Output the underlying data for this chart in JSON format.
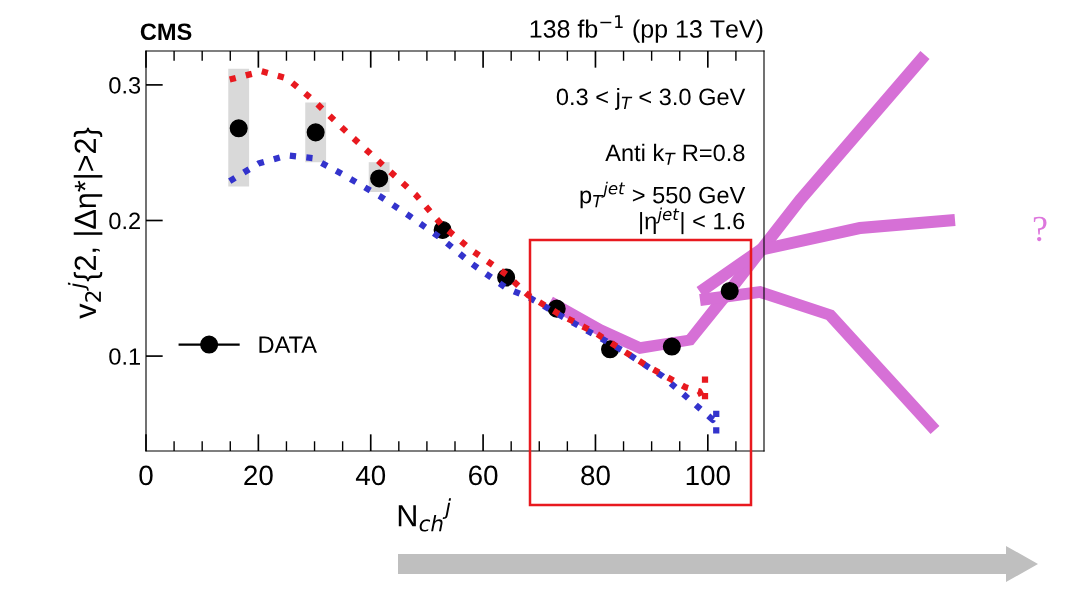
{
  "chart_data": {
    "type": "scatter",
    "title": "CMS",
    "subtitle": "138 fb$^{−1}$ (pp 13 TeV)",
    "xlabel": "N$_{ch}$$^{j}$",
    "ylabel": "v$_{2}$$^{j}${2, |Δη*|>2}",
    "xlim": [
      0,
      110
    ],
    "ylim": [
      0.03,
      0.325
    ],
    "xticks": [
      0,
      {
        "value": 5,
        "label": null
      },
      {
        "value": 10,
        "label": null
      },
      {
        "value": 15,
        "label": null
      },
      20,
      {
        "value": 25,
        "label": null
      },
      {
        "value": 30,
        "label": null
      },
      {
        "value": 35,
        "label": null
      },
      40,
      {
        "value": 45,
        "label": null
      },
      {
        "value": 50,
        "label": null
      },
      {
        "value": 55,
        "label": null
      },
      60,
      {
        "value": 65,
        "label": null
      },
      {
        "value": 70,
        "label": null
      },
      {
        "value": 75,
        "label": null
      },
      80,
      {
        "value": 85,
        "label": null
      },
      {
        "value": 90,
        "label": null
      },
      {
        "value": 95,
        "label": null
      },
      100,
      {
        "value": 105,
        "label": null
      }
    ],
    "yticks": [
      0.1,
      0.2,
      0.3
    ],
    "legend": "bottom left",
    "grid": false,
    "annotations": [
      "0.3 < j$_{T}$ < 3.0 GeV",
      "Anti k$_{T}$ R=0.8",
      "p$_{T}$$^{jet}$ > 550 GeV",
      "|η$^{jet}$| < 1.6",
      "?"
    ],
    "series": [
      {
        "name": "DATA",
        "color": "#000000",
        "marker": "circle",
        "x": [
          16.5,
          30.2,
          41.5,
          52.8,
          64.1,
          73.1,
          82.6,
          93.6,
          103.9
        ],
        "values": [
          0.268,
          0.265,
          0.231,
          0.193,
          0.158,
          0.135,
          0.105,
          0.107,
          0.148
        ],
        "errors": [
          [
            0.225,
            0.312
          ],
          [
            0.243,
            0.287
          ],
          [
            0.221,
            0.243
          ],
          null,
          null,
          null,
          null,
          null,
          null
        ]
      },
      {
        "type": "line",
        "color": "#3333cc",
        "line_style": "dotted",
        "x": [
          14.9,
          20,
          25.1,
          29.7,
          35,
          41.6,
          47,
          52.8,
          58,
          64.2,
          68.3,
          75,
          84.9,
          92,
          100.9,
          101.5,
          101.5
        ],
        "values": [
          0.229,
          0.242,
          0.248,
          0.246,
          0.234,
          0.218,
          0.203,
          0.186,
          0.168,
          0.15,
          0.143,
          0.127,
          0.104,
          0.085,
          0.053,
          0.06,
          0.041
        ]
      },
      {
        "type": "line",
        "color": "#e8191f",
        "line_style": "dotted",
        "x": [
          14.9,
          20.6,
          25,
          29.7,
          35,
          41.6,
          48,
          52.8,
          58,
          64.2,
          68,
          73.1,
          80,
          89.1,
          96,
          98.5,
          99.5,
          99.5
        ],
        "values": [
          0.304,
          0.31,
          0.305,
          0.289,
          0.268,
          0.243,
          0.219,
          0.196,
          0.178,
          0.16,
          0.145,
          0.132,
          0.117,
          0.093,
          0.077,
          0.074,
          0.066,
          0.085
        ]
      }
    ]
  }
}
